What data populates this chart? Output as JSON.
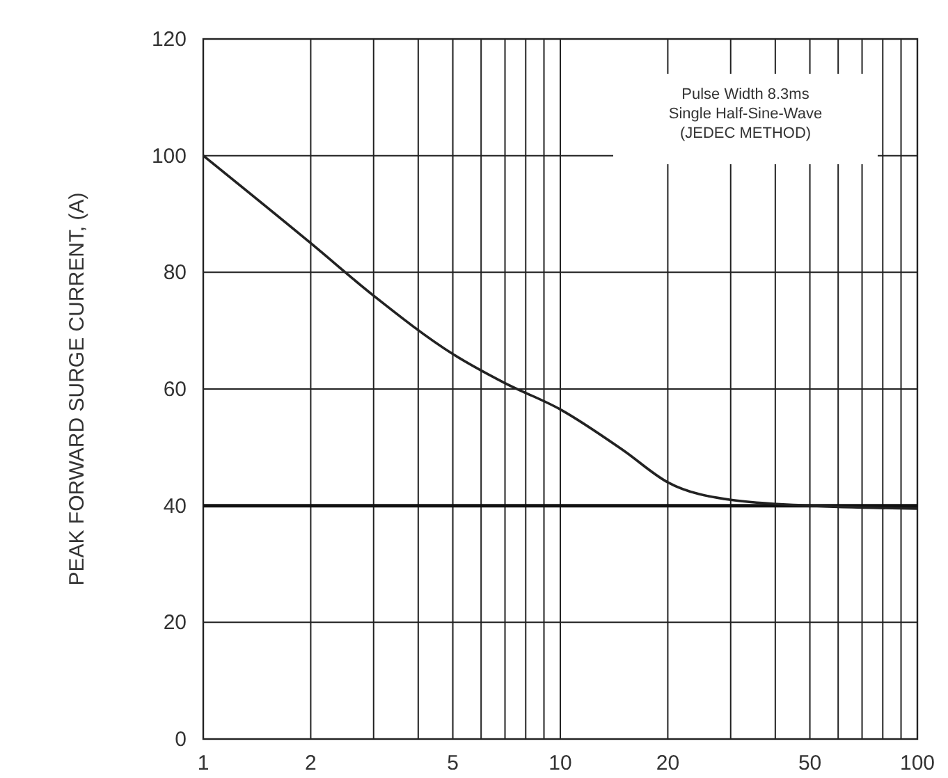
{
  "chart_data": {
    "type": "line",
    "ylabel": "PEAK FORWARD SURGE CURRENT, (A)",
    "annotations": [
      "Pulse Width 8.3ms\nSingle Half-Sine-Wave\n(JEDEC METHOD)"
    ],
    "log": "x",
    "grid": true,
    "marker": "none",
    "line_style": "solid",
    "x": [
      1,
      2,
      3,
      5,
      7,
      10,
      15,
      20,
      30,
      50,
      100
    ],
    "series": [
      {
        "color": "#222222",
        "values": [
          100,
          85,
          76,
          66,
          61,
          56.5,
          49.5,
          44,
          41,
          40,
          39.5
        ]
      }
    ],
    "ref_lines": [
      {
        "axis": "y",
        "value": 40,
        "label": null,
        "color": "#111111"
      }
    ],
    "xlim": [
      1,
      100
    ],
    "ylim": [
      0,
      120
    ],
    "xticks": [
      1,
      2,
      {
        "value": 3,
        "label": null
      },
      {
        "value": 4,
        "label": null
      },
      5,
      {
        "value": 6,
        "label": null
      },
      {
        "value": 7,
        "label": null
      },
      {
        "value": 8,
        "label": null
      },
      {
        "value": 9,
        "label": null
      },
      10,
      20,
      {
        "value": 30,
        "label": null
      },
      {
        "value": 40,
        "label": null
      },
      50,
      {
        "value": 60,
        "label": null
      },
      {
        "value": 70,
        "label": null
      },
      {
        "value": 80,
        "label": null
      },
      {
        "value": 90,
        "label": null
      },
      100
    ],
    "yticks": [
      0,
      20,
      40,
      60,
      80,
      100,
      120
    ]
  }
}
